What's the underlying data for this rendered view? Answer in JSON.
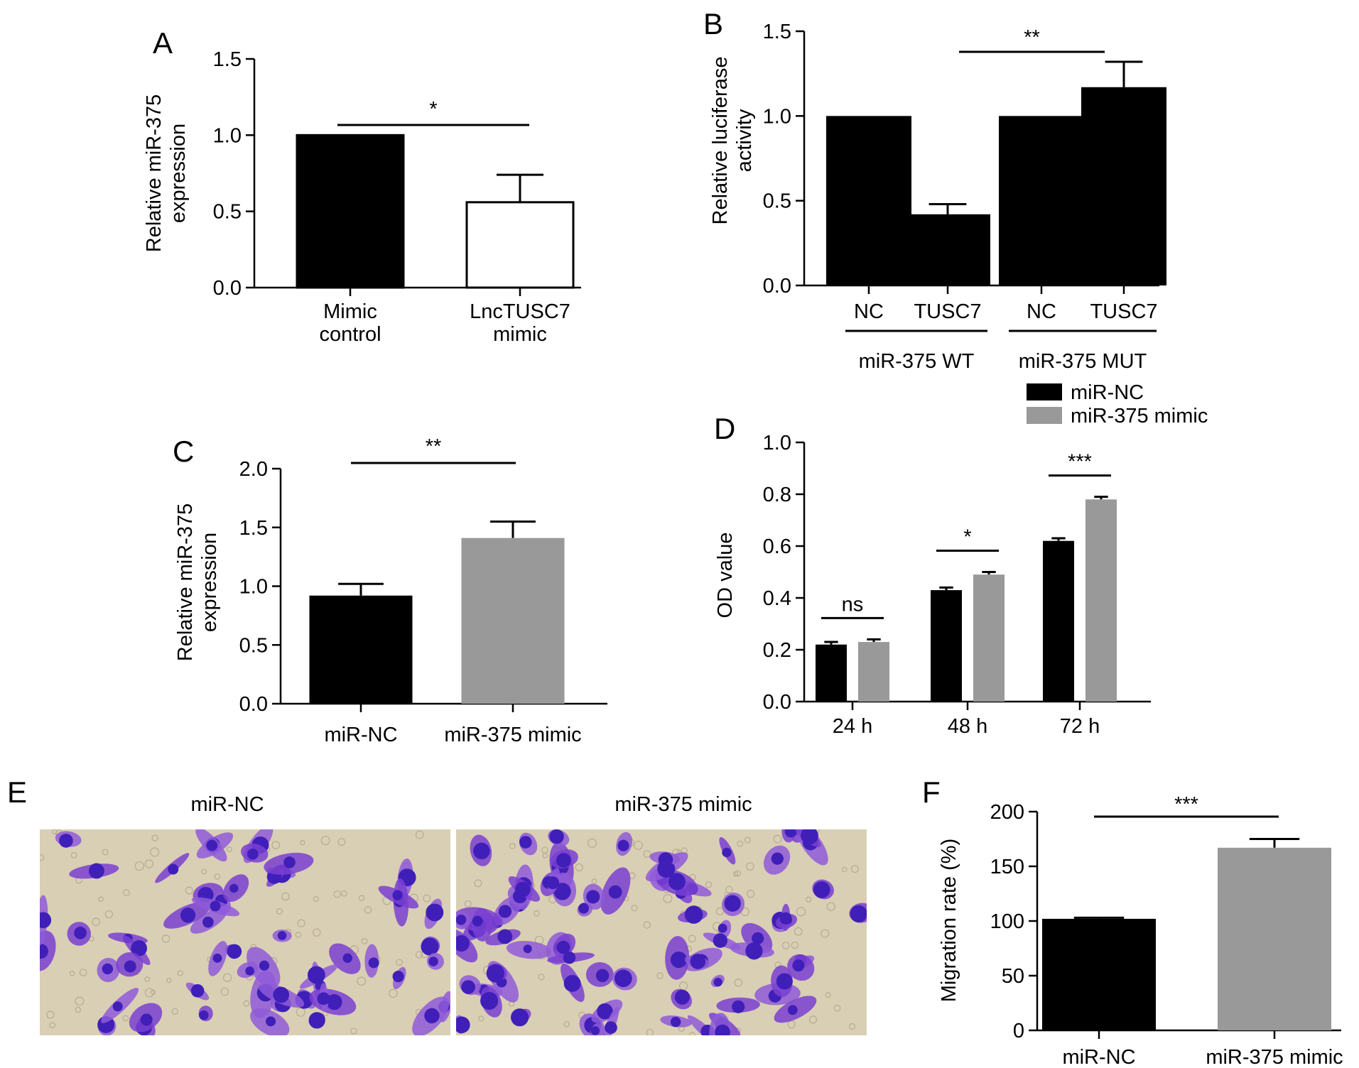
{
  "chart_data": [
    {
      "panel": "A",
      "type": "bar",
      "categories": [
        "Mimic control",
        "LncTUSC7 mimic"
      ],
      "values": [
        1.0,
        0.56
      ],
      "errors": [
        0,
        0.18
      ],
      "colors": [
        "#000000",
        "#ffffff"
      ],
      "ylabel": "Relative miR-375 expression",
      "ylim": [
        0,
        1.5
      ],
      "yticks": [
        "0.0",
        "0.5",
        "1.0",
        "1.5"
      ],
      "significance": [
        {
          "from": 0,
          "to": 1,
          "label": "*"
        }
      ]
    },
    {
      "panel": "B",
      "type": "bar",
      "categories": [
        "NC",
        "TUSC7",
        "NC",
        "TUSC7"
      ],
      "groups": [
        "miR-375 WT",
        "miR-375 MUT"
      ],
      "values": [
        1.0,
        0.42,
        1.0,
        1.17
      ],
      "errors": [
        0,
        0.06,
        0,
        0.15
      ],
      "colors": [
        "#000000",
        "#000000",
        "#000000",
        "#000000"
      ],
      "ylabel": "Relative luciferase activity",
      "ylim": [
        0,
        1.5
      ],
      "yticks": [
        "0.0",
        "0.5",
        "1.0",
        "1.5"
      ],
      "significance": [
        {
          "from": 1,
          "to": 3,
          "label": "**"
        }
      ]
    },
    {
      "panel": "C",
      "type": "bar",
      "categories": [
        "miR-NC",
        "miR-375 mimic"
      ],
      "values": [
        0.92,
        1.41
      ],
      "errors": [
        0.1,
        0.14
      ],
      "colors": [
        "#000000",
        "#999999"
      ],
      "ylabel": "Relative miR-375 expression",
      "ylim": [
        0,
        2.0
      ],
      "yticks": [
        "0.0",
        "0.5",
        "1.0",
        "1.5",
        "2.0"
      ],
      "significance": [
        {
          "from": 0,
          "to": 1,
          "label": "**"
        }
      ]
    },
    {
      "panel": "D",
      "type": "bar",
      "categories": [
        "24 h",
        "48 h",
        "72 h"
      ],
      "series": [
        {
          "name": "miR-NC",
          "values": [
            0.22,
            0.43,
            0.62
          ],
          "errors": [
            0.01,
            0.01,
            0.01
          ],
          "color": "#000000"
        },
        {
          "name": "miR-375 mimic",
          "values": [
            0.23,
            0.49,
            0.78
          ],
          "errors": [
            0.01,
            0.01,
            0.01
          ],
          "color": "#999999"
        }
      ],
      "ylabel": "OD value",
      "ylim": [
        0,
        1.0
      ],
      "yticks": [
        "0.0",
        "0.2",
        "0.4",
        "0.6",
        "0.8",
        "1.0"
      ],
      "significance": [
        {
          "category": 0,
          "label": "ns"
        },
        {
          "category": 1,
          "label": "*"
        },
        {
          "category": 2,
          "label": "***"
        }
      ]
    },
    {
      "panel": "F",
      "type": "bar",
      "categories": [
        "miR-NC",
        "miR-375 mimic"
      ],
      "values": [
        102,
        167
      ],
      "errors": [
        1,
        8
      ],
      "colors": [
        "#000000",
        "#999999"
      ],
      "ylabel": "Migration rate (%)",
      "ylim": [
        0,
        200
      ],
      "yticks": [
        "0",
        "50",
        "100",
        "150",
        "200"
      ],
      "significance": [
        {
          "from": 0,
          "to": 1,
          "label": "***"
        }
      ]
    }
  ],
  "panel_e": {
    "letter": "E",
    "images": [
      {
        "title": "miR-NC",
        "picture": "crystal-violet-stained-cells"
      },
      {
        "title": "miR-375 mimic",
        "picture": "crystal-violet-stained-cells"
      }
    ]
  }
}
